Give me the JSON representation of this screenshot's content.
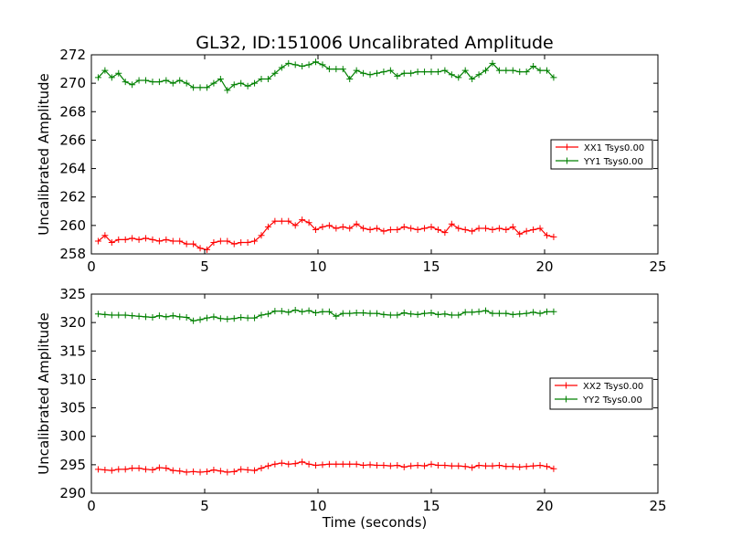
{
  "figure_title": "GL32, ID:151006 Uncalibrated Amplitude",
  "chart_data": [
    {
      "type": "line",
      "title": "GL32, ID:151006 Uncalibrated Amplitude",
      "xlabel": "",
      "ylabel": "Uncalibrated Amplitude",
      "xlim": [
        0,
        25
      ],
      "ylim": [
        258,
        272
      ],
      "xticks": [
        0,
        5,
        10,
        15,
        20,
        25
      ],
      "yticks": [
        258,
        260,
        262,
        264,
        266,
        268,
        270,
        272
      ],
      "grid": false,
      "legend_position": "center-right",
      "x": [
        0.3,
        0.6,
        0.9,
        1.2,
        1.5,
        1.8,
        2.1,
        2.4,
        2.7,
        3.0,
        3.3,
        3.6,
        3.9,
        4.2,
        4.5,
        4.8,
        5.1,
        5.4,
        5.7,
        6.0,
        6.3,
        6.6,
        6.9,
        7.2,
        7.5,
        7.8,
        8.1,
        8.4,
        8.7,
        9.0,
        9.3,
        9.6,
        9.9,
        10.2,
        10.5,
        10.8,
        11.1,
        11.4,
        11.7,
        12.0,
        12.3,
        12.6,
        12.9,
        13.2,
        13.5,
        13.8,
        14.1,
        14.4,
        14.7,
        15.0,
        15.3,
        15.6,
        15.9,
        16.2,
        16.5,
        16.8,
        17.1,
        17.4,
        17.7,
        18.0,
        18.3,
        18.6,
        18.9,
        19.2,
        19.5,
        19.8,
        20.1,
        20.4
      ],
      "series": [
        {
          "name": "XX1 Tsys0.00",
          "color": "#ff0000",
          "values": [
            258.9,
            259.3,
            258.8,
            259.0,
            259.0,
            259.1,
            259.0,
            259.1,
            259.0,
            258.9,
            259.0,
            258.9,
            258.9,
            258.7,
            258.7,
            258.4,
            258.3,
            258.8,
            258.9,
            258.9,
            258.7,
            258.8,
            258.8,
            258.9,
            259.3,
            259.9,
            260.3,
            260.3,
            260.3,
            260.0,
            260.4,
            260.2,
            259.7,
            259.9,
            260.0,
            259.8,
            259.9,
            259.8,
            260.1,
            259.8,
            259.7,
            259.8,
            259.6,
            259.7,
            259.7,
            259.9,
            259.8,
            259.7,
            259.8,
            259.9,
            259.7,
            259.5,
            260.1,
            259.8,
            259.7,
            259.6,
            259.8,
            259.8,
            259.7,
            259.8,
            259.7,
            259.9,
            259.4,
            259.6,
            259.7,
            259.8,
            259.3,
            259.2
          ]
        },
        {
          "name": "YY1 Tsys0.00",
          "color": "#008000",
          "values": [
            270.4,
            270.9,
            270.4,
            270.7,
            270.1,
            269.9,
            270.2,
            270.2,
            270.1,
            270.1,
            270.2,
            270.0,
            270.2,
            270.0,
            269.7,
            269.7,
            269.7,
            270.0,
            270.3,
            269.5,
            269.9,
            270.0,
            269.8,
            270.0,
            270.3,
            270.3,
            270.7,
            271.1,
            271.4,
            271.3,
            271.2,
            271.3,
            271.5,
            271.3,
            271.0,
            271.0,
            271.0,
            270.3,
            270.9,
            270.7,
            270.6,
            270.7,
            270.8,
            270.9,
            270.5,
            270.7,
            270.7,
            270.8,
            270.8,
            270.8,
            270.8,
            270.9,
            270.6,
            270.4,
            270.9,
            270.3,
            270.6,
            270.9,
            271.4,
            270.9,
            270.9,
            270.9,
            270.8,
            270.8,
            271.2,
            270.9,
            270.9,
            270.4
          ]
        }
      ]
    },
    {
      "type": "line",
      "title": "",
      "xlabel": "Time (seconds)",
      "ylabel": "Uncalibrated Amplitude",
      "xlim": [
        0,
        25
      ],
      "ylim": [
        290,
        325
      ],
      "xticks": [
        0,
        5,
        10,
        15,
        20,
        25
      ],
      "yticks": [
        290,
        295,
        300,
        305,
        310,
        315,
        320,
        325
      ],
      "grid": false,
      "legend_position": "center-right",
      "x": [
        0.3,
        0.6,
        0.9,
        1.2,
        1.5,
        1.8,
        2.1,
        2.4,
        2.7,
        3.0,
        3.3,
        3.6,
        3.9,
        4.2,
        4.5,
        4.8,
        5.1,
        5.4,
        5.7,
        6.0,
        6.3,
        6.6,
        6.9,
        7.2,
        7.5,
        7.8,
        8.1,
        8.4,
        8.7,
        9.0,
        9.3,
        9.6,
        9.9,
        10.2,
        10.5,
        10.8,
        11.1,
        11.4,
        11.7,
        12.0,
        12.3,
        12.6,
        12.9,
        13.2,
        13.5,
        13.8,
        14.1,
        14.4,
        14.7,
        15.0,
        15.3,
        15.6,
        15.9,
        16.2,
        16.5,
        16.8,
        17.1,
        17.4,
        17.7,
        18.0,
        18.3,
        18.6,
        18.9,
        19.2,
        19.5,
        19.8,
        20.1,
        20.4
      ],
      "series": [
        {
          "name": "XX2 Tsys0.00",
          "color": "#ff0000",
          "values": [
            294.2,
            294.1,
            294.0,
            294.2,
            294.2,
            294.4,
            294.4,
            294.2,
            294.1,
            294.5,
            294.4,
            294.0,
            293.9,
            293.7,
            293.8,
            293.7,
            293.8,
            294.1,
            293.9,
            293.7,
            293.8,
            294.2,
            294.1,
            294.0,
            294.4,
            294.8,
            295.1,
            295.3,
            295.1,
            295.2,
            295.5,
            295.1,
            294.9,
            295.0,
            295.1,
            295.1,
            295.1,
            295.1,
            295.1,
            294.9,
            295.0,
            294.9,
            294.9,
            294.8,
            294.9,
            294.6,
            294.8,
            294.9,
            294.8,
            295.1,
            294.9,
            294.9,
            294.8,
            294.8,
            294.7,
            294.5,
            294.9,
            294.8,
            294.8,
            294.9,
            294.7,
            294.7,
            294.6,
            294.7,
            294.8,
            294.9,
            294.7,
            294.3
          ]
        },
        {
          "name": "YY2 Tsys0.00",
          "color": "#008000",
          "values": [
            321.5,
            321.4,
            321.3,
            321.3,
            321.3,
            321.2,
            321.1,
            321.0,
            320.9,
            321.2,
            321.0,
            321.2,
            321.0,
            320.9,
            320.3,
            320.5,
            320.8,
            321.0,
            320.7,
            320.6,
            320.7,
            320.9,
            320.8,
            320.8,
            321.3,
            321.5,
            322.0,
            322.0,
            321.8,
            322.2,
            321.9,
            322.1,
            321.7,
            321.9,
            321.9,
            321.1,
            321.6,
            321.6,
            321.7,
            321.7,
            321.6,
            321.6,
            321.4,
            321.3,
            321.3,
            321.7,
            321.5,
            321.4,
            321.6,
            321.7,
            321.4,
            321.5,
            321.3,
            321.3,
            321.8,
            321.8,
            321.9,
            322.1,
            321.6,
            321.6,
            321.6,
            321.4,
            321.5,
            321.6,
            321.8,
            321.6,
            321.9,
            321.9
          ]
        }
      ]
    }
  ]
}
